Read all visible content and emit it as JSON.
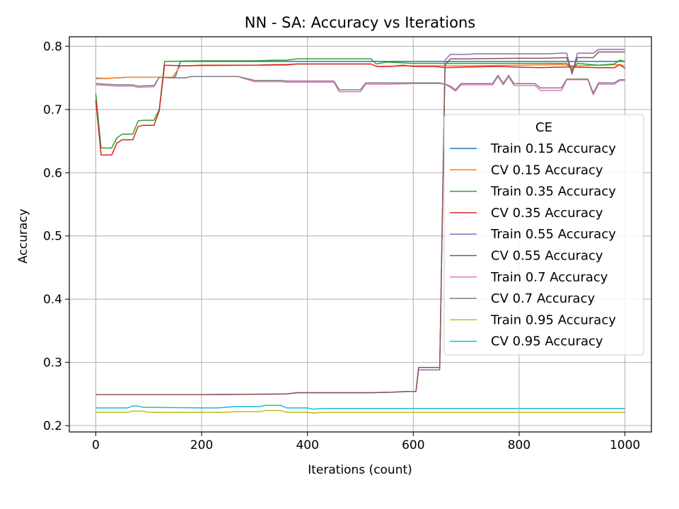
{
  "chart_data": {
    "type": "line",
    "title": "NN - SA: Accuracy vs Iterations",
    "xlabel": "Iterations (count)",
    "ylabel": "Accuracy",
    "xlim": [
      -50,
      1050
    ],
    "ylim": [
      0.19,
      0.815
    ],
    "xticks": [
      0,
      200,
      400,
      600,
      800,
      1000
    ],
    "yticks": [
      0.2,
      0.3,
      0.4,
      0.5,
      0.6,
      0.7,
      0.8
    ],
    "xtick_labels": [
      "0",
      "200",
      "400",
      "600",
      "800",
      "1000"
    ],
    "ytick_labels": [
      "0.2",
      "0.3",
      "0.4",
      "0.5",
      "0.6",
      "0.7",
      "0.8"
    ],
    "grid": true,
    "legend_title": "CE",
    "legend_position": "center-right",
    "series": [
      {
        "name": "Train 0.15 Accuracy",
        "color": "#1f77b4",
        "points": [
          [
            0,
            0.749
          ],
          [
            20,
            0.749
          ],
          [
            40,
            0.75
          ],
          [
            60,
            0.751
          ],
          [
            100,
            0.751
          ],
          [
            130,
            0.751
          ],
          [
            150,
            0.751
          ],
          [
            160,
            0.776
          ],
          [
            500,
            0.776
          ],
          [
            1000,
            0.776
          ]
        ]
      },
      {
        "name": "CV 0.15 Accuracy",
        "color": "#ff7f0e",
        "points": [
          [
            0,
            0.75
          ],
          [
            20,
            0.749
          ],
          [
            40,
            0.75
          ],
          [
            60,
            0.751
          ],
          [
            100,
            0.751
          ],
          [
            130,
            0.751
          ],
          [
            145,
            0.751
          ],
          [
            160,
            0.769
          ],
          [
            300,
            0.77
          ],
          [
            360,
            0.77
          ],
          [
            380,
            0.772
          ],
          [
            520,
            0.772
          ],
          [
            530,
            0.768
          ],
          [
            600,
            0.769
          ],
          [
            700,
            0.769
          ],
          [
            800,
            0.77
          ],
          [
            880,
            0.771
          ],
          [
            900,
            0.769
          ],
          [
            950,
            0.77
          ],
          [
            990,
            0.771
          ],
          [
            1000,
            0.769
          ]
        ]
      },
      {
        "name": "Train 0.35 Accuracy",
        "color": "#2ca02c",
        "points": [
          [
            0,
            0.725
          ],
          [
            10,
            0.639
          ],
          [
            30,
            0.639
          ],
          [
            40,
            0.655
          ],
          [
            50,
            0.661
          ],
          [
            70,
            0.661
          ],
          [
            80,
            0.682
          ],
          [
            90,
            0.683
          ],
          [
            110,
            0.683
          ],
          [
            120,
            0.7
          ],
          [
            130,
            0.776
          ],
          [
            200,
            0.777
          ],
          [
            300,
            0.777
          ],
          [
            340,
            0.778
          ],
          [
            360,
            0.778
          ],
          [
            380,
            0.78
          ],
          [
            520,
            0.78
          ],
          [
            530,
            0.772
          ],
          [
            550,
            0.775
          ],
          [
            600,
            0.773
          ],
          [
            660,
            0.773
          ],
          [
            700,
            0.773
          ],
          [
            800,
            0.773
          ],
          [
            890,
            0.773
          ],
          [
            900,
            0.763
          ],
          [
            910,
            0.773
          ],
          [
            950,
            0.77
          ],
          [
            980,
            0.772
          ],
          [
            990,
            0.778
          ],
          [
            1000,
            0.776
          ]
        ]
      },
      {
        "name": "CV 0.35 Accuracy",
        "color": "#d62728",
        "points": [
          [
            0,
            0.715
          ],
          [
            10,
            0.628
          ],
          [
            30,
            0.628
          ],
          [
            40,
            0.647
          ],
          [
            50,
            0.652
          ],
          [
            70,
            0.652
          ],
          [
            80,
            0.673
          ],
          [
            90,
            0.675
          ],
          [
            110,
            0.675
          ],
          [
            120,
            0.698
          ],
          [
            130,
            0.77
          ],
          [
            170,
            0.769
          ],
          [
            200,
            0.77
          ],
          [
            300,
            0.77
          ],
          [
            340,
            0.771
          ],
          [
            360,
            0.771
          ],
          [
            380,
            0.772
          ],
          [
            520,
            0.772
          ],
          [
            530,
            0.768
          ],
          [
            560,
            0.768
          ],
          [
            580,
            0.77
          ],
          [
            600,
            0.768
          ],
          [
            640,
            0.768
          ],
          [
            660,
            0.766
          ],
          [
            700,
            0.767
          ],
          [
            760,
            0.768
          ],
          [
            800,
            0.767
          ],
          [
            840,
            0.766
          ],
          [
            880,
            0.767
          ],
          [
            900,
            0.767
          ],
          [
            950,
            0.766
          ],
          [
            980,
            0.766
          ],
          [
            990,
            0.771
          ],
          [
            1000,
            0.765
          ]
        ]
      },
      {
        "name": "Train 0.55 Accuracy",
        "color": "#9467bd",
        "points": [
          [
            0,
            0.249
          ],
          [
            200,
            0.249
          ],
          [
            360,
            0.25
          ],
          [
            380,
            0.252
          ],
          [
            520,
            0.252
          ],
          [
            560,
            0.253
          ],
          [
            590,
            0.254
          ],
          [
            605,
            0.254
          ],
          [
            610,
            0.288
          ],
          [
            650,
            0.288
          ],
          [
            660,
            0.778
          ],
          [
            670,
            0.787
          ],
          [
            700,
            0.787
          ],
          [
            720,
            0.788
          ],
          [
            800,
            0.788
          ],
          [
            850,
            0.788
          ],
          [
            880,
            0.789
          ],
          [
            890,
            0.789
          ],
          [
            900,
            0.756
          ],
          [
            910,
            0.789
          ],
          [
            940,
            0.789
          ],
          [
            950,
            0.795
          ],
          [
            1000,
            0.795
          ]
        ]
      },
      {
        "name": "CV 0.55 Accuracy",
        "color": "#8c564b",
        "points": [
          [
            0,
            0.249
          ],
          [
            200,
            0.249
          ],
          [
            360,
            0.25
          ],
          [
            380,
            0.252
          ],
          [
            520,
            0.252
          ],
          [
            560,
            0.253
          ],
          [
            590,
            0.254
          ],
          [
            605,
            0.254
          ],
          [
            610,
            0.292
          ],
          [
            650,
            0.292
          ],
          [
            660,
            0.77
          ],
          [
            670,
            0.78
          ],
          [
            700,
            0.78
          ],
          [
            800,
            0.781
          ],
          [
            850,
            0.781
          ],
          [
            890,
            0.782
          ],
          [
            900,
            0.758
          ],
          [
            910,
            0.782
          ],
          [
            940,
            0.782
          ],
          [
            950,
            0.791
          ],
          [
            1000,
            0.791
          ]
        ]
      },
      {
        "name": "Train 0.7 Accuracy",
        "color": "#e377c2",
        "points": [
          [
            0,
            0.739
          ],
          [
            40,
            0.737
          ],
          [
            70,
            0.737
          ],
          [
            80,
            0.735
          ],
          [
            110,
            0.736
          ],
          [
            120,
            0.751
          ],
          [
            140,
            0.75
          ],
          [
            170,
            0.75
          ],
          [
            180,
            0.752
          ],
          [
            270,
            0.752
          ],
          [
            280,
            0.749
          ],
          [
            300,
            0.744
          ],
          [
            350,
            0.744
          ],
          [
            360,
            0.743
          ],
          [
            400,
            0.743
          ],
          [
            450,
            0.743
          ],
          [
            460,
            0.728
          ],
          [
            500,
            0.728
          ],
          [
            510,
            0.74
          ],
          [
            550,
            0.74
          ],
          [
            600,
            0.741
          ],
          [
            650,
            0.741
          ],
          [
            660,
            0.74
          ],
          [
            670,
            0.735
          ],
          [
            680,
            0.729
          ],
          [
            690,
            0.739
          ],
          [
            750,
            0.739
          ],
          [
            760,
            0.752
          ],
          [
            770,
            0.739
          ],
          [
            780,
            0.752
          ],
          [
            790,
            0.738
          ],
          [
            830,
            0.738
          ],
          [
            840,
            0.73
          ],
          [
            880,
            0.73
          ],
          [
            890,
            0.747
          ],
          [
            930,
            0.747
          ],
          [
            940,
            0.723
          ],
          [
            950,
            0.74
          ],
          [
            980,
            0.74
          ],
          [
            990,
            0.746
          ],
          [
            1000,
            0.746
          ]
        ]
      },
      {
        "name": "CV 0.7 Accuracy",
        "color": "#7f7f7f",
        "points": [
          [
            0,
            0.741
          ],
          [
            40,
            0.739
          ],
          [
            70,
            0.739
          ],
          [
            80,
            0.737
          ],
          [
            110,
            0.738
          ],
          [
            120,
            0.751
          ],
          [
            140,
            0.75
          ],
          [
            170,
            0.75
          ],
          [
            180,
            0.752
          ],
          [
            270,
            0.752
          ],
          [
            280,
            0.75
          ],
          [
            300,
            0.746
          ],
          [
            350,
            0.746
          ],
          [
            360,
            0.745
          ],
          [
            400,
            0.745
          ],
          [
            450,
            0.745
          ],
          [
            460,
            0.731
          ],
          [
            500,
            0.731
          ],
          [
            510,
            0.742
          ],
          [
            550,
            0.742
          ],
          [
            600,
            0.742
          ],
          [
            650,
            0.742
          ],
          [
            660,
            0.74
          ],
          [
            670,
            0.737
          ],
          [
            680,
            0.731
          ],
          [
            690,
            0.741
          ],
          [
            750,
            0.741
          ],
          [
            760,
            0.754
          ],
          [
            770,
            0.741
          ],
          [
            780,
            0.754
          ],
          [
            790,
            0.741
          ],
          [
            830,
            0.741
          ],
          [
            840,
            0.734
          ],
          [
            880,
            0.734
          ],
          [
            890,
            0.748
          ],
          [
            930,
            0.748
          ],
          [
            940,
            0.726
          ],
          [
            950,
            0.742
          ],
          [
            980,
            0.742
          ],
          [
            990,
            0.747
          ],
          [
            1000,
            0.747
          ]
        ]
      },
      {
        "name": "Train 0.95 Accuracy",
        "color": "#bcbd22",
        "points": [
          [
            0,
            0.221
          ],
          [
            60,
            0.221
          ],
          [
            70,
            0.223
          ],
          [
            90,
            0.223
          ],
          [
            100,
            0.221
          ],
          [
            250,
            0.221
          ],
          [
            260,
            0.222
          ],
          [
            310,
            0.222
          ],
          [
            320,
            0.224
          ],
          [
            350,
            0.224
          ],
          [
            360,
            0.221
          ],
          [
            400,
            0.221
          ],
          [
            410,
            0.22
          ],
          [
            430,
            0.221
          ],
          [
            1000,
            0.221
          ]
        ]
      },
      {
        "name": "CV 0.95 Accuracy",
        "color": "#17becf",
        "points": [
          [
            0,
            0.228
          ],
          [
            60,
            0.228
          ],
          [
            70,
            0.231
          ],
          [
            80,
            0.231
          ],
          [
            90,
            0.229
          ],
          [
            200,
            0.228
          ],
          [
            230,
            0.228
          ],
          [
            260,
            0.23
          ],
          [
            310,
            0.23
          ],
          [
            320,
            0.232
          ],
          [
            350,
            0.232
          ],
          [
            360,
            0.228
          ],
          [
            400,
            0.228
          ],
          [
            410,
            0.226
          ],
          [
            430,
            0.227
          ],
          [
            1000,
            0.227
          ]
        ]
      }
    ]
  }
}
